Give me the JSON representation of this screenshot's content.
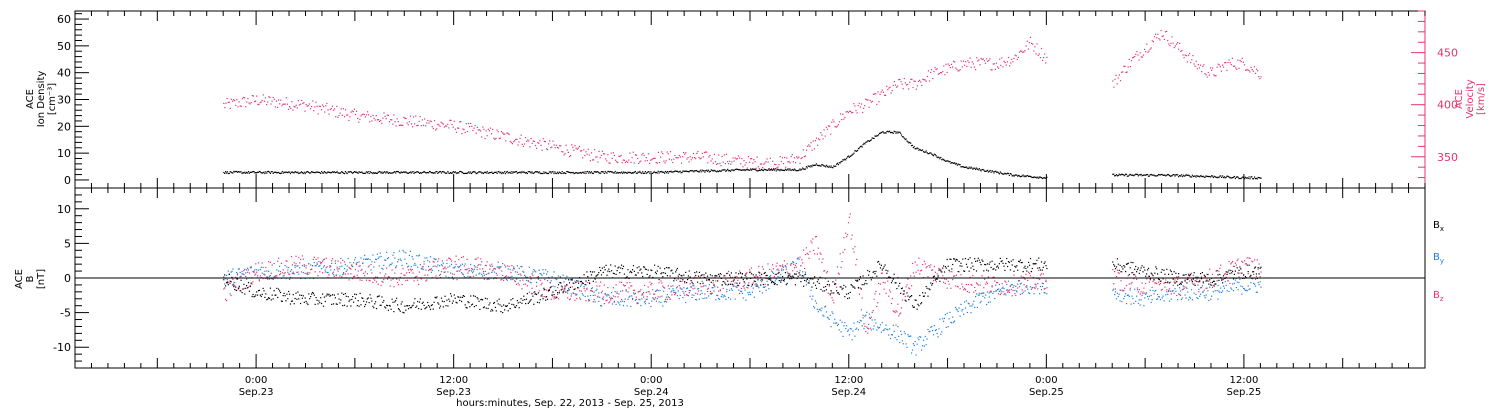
{
  "chart_data": [
    {
      "type": "scatter",
      "panel": "top",
      "title": "",
      "ylabel_left": [
        "ACE",
        "Ion Density",
        "[cm⁻³]"
      ],
      "ylabel_right": [
        "ACE",
        "Velocity",
        "[km/s]"
      ],
      "ylim_left": [
        -3,
        63
      ],
      "yticks_left": [
        0,
        10,
        20,
        30,
        40,
        50,
        60
      ],
      "ylim_right": [
        320,
        490
      ],
      "yticks_right": [
        350,
        400,
        450
      ],
      "grid": false,
      "colors": {
        "density": "#000000",
        "velocity": "#e8336a"
      },
      "series": [
        {
          "axis": "left",
          "color": "#000000",
          "noise": 0.4,
          "density": 6,
          "segments": [
            {
              "x": [
                -2.0,
                0,
                6,
                12,
                18,
                24,
                30,
                33,
                34,
                35,
                36,
                37,
                38,
                39,
                40,
                41,
                42,
                43,
                44,
                46,
                48
              ],
              "y": [
                3,
                3,
                3,
                3,
                3,
                3,
                4,
                4,
                6,
                5,
                9,
                14,
                18,
                18,
                12,
                10,
                7,
                5,
                4,
                2,
                1
              ]
            },
            {
              "x": [
                52,
                55,
                58,
                60,
                61
              ],
              "y": [
                2,
                2,
                1.5,
                1,
                1
              ]
            }
          ]
        },
        {
          "axis": "right",
          "color": "#e8336a",
          "noise": 6,
          "density": 5,
          "segments": [
            {
              "x": [
                -2.0,
                0,
                3,
                6,
                9,
                12,
                15,
                18,
                21,
                24,
                27,
                30,
                32,
                33,
                34,
                35,
                36,
                37,
                38,
                39,
                40,
                41,
                42,
                43,
                44,
                45,
                46,
                47,
                48
              ],
              "y": [
                400,
                405,
                400,
                390,
                385,
                380,
                370,
                360,
                350,
                350,
                350,
                345,
                345,
                350,
                365,
                380,
                395,
                400,
                410,
                420,
                420,
                430,
                435,
                440,
                440,
                440,
                445,
                460,
                445
              ]
            },
            {
              "x": [
                52,
                53,
                54,
                55,
                56,
                57,
                58,
                59,
                60,
                61
              ],
              "y": [
                420,
                440,
                455,
                470,
                455,
                440,
                430,
                440,
                440,
                430
              ]
            }
          ]
        }
      ]
    },
    {
      "type": "scatter",
      "panel": "bottom",
      "title": "",
      "ylabel_left": [
        "ACE",
        "B",
        "[nT]"
      ],
      "ylim": [
        -13,
        13
      ],
      "yticks": [
        -10,
        -5,
        0,
        5,
        10
      ],
      "zero_line": true,
      "legend_position": "right",
      "grid": false,
      "x_tick_labels": [
        {
          "x": 0,
          "line1": "0:00",
          "line2": "Sep.23"
        },
        {
          "x": 12,
          "line1": "12:00",
          "line2": "Sep.23"
        },
        {
          "x": 24,
          "line1": "0:00",
          "line2": "Sep.24"
        },
        {
          "x": 36,
          "line1": "12:00",
          "line2": "Sep.24"
        },
        {
          "x": 48,
          "line1": "0:00",
          "line2": "Sep.25"
        },
        {
          "x": 60,
          "line1": "12:00",
          "line2": "Sep.25"
        }
      ],
      "xlabel": "hours:minutes, Sep. 22, 2013 - Sep. 25, 2013",
      "xlim": [
        -11,
        71
      ],
      "series": [
        {
          "name_main": "B",
          "name_sub": "x",
          "color": "#000000",
          "noise": 1.0,
          "density": 6,
          "segments": [
            {
              "x": [
                -2.0,
                0,
                3,
                6,
                9,
                12,
                15,
                18,
                21,
                24,
                27,
                30,
                33,
                36,
                38,
                40,
                42,
                44,
                46,
                48
              ],
              "y": [
                0,
                -2,
                -3,
                -3,
                -4,
                -3,
                -4,
                -2,
                1,
                1,
                0,
                0,
                0,
                -2,
                2,
                -4,
                2,
                2,
                2,
                2
              ]
            },
            {
              "x": [
                52,
                54,
                56,
                58,
                60,
                61
              ],
              "y": [
                2,
                1,
                0,
                0,
                1,
                1
              ]
            }
          ]
        },
        {
          "name_main": "B",
          "name_sub": "y",
          "color": "#1f7fe0",
          "noise": 1.2,
          "density": 6,
          "segments": [
            {
              "x": [
                -2.0,
                0,
                3,
                6,
                9,
                12,
                15,
                18,
                21,
                24,
                27,
                30,
                33,
                34,
                35,
                36,
                37,
                38,
                39,
                40,
                42,
                44,
                46,
                48
              ],
              "y": [
                0,
                1,
                1,
                2,
                3,
                1,
                1,
                0,
                -3,
                -3,
                -2,
                -2,
                2,
                -4,
                -6,
                -8,
                -6,
                -7,
                -8,
                -10,
                -6,
                -3,
                -1,
                -1
              ]
            },
            {
              "x": [
                52,
                54,
                56,
                58,
                60,
                61
              ],
              "y": [
                -2,
                -3,
                -2,
                -2,
                -1,
                -1
              ]
            }
          ]
        },
        {
          "name_main": "B",
          "name_sub": "z",
          "color": "#e8336a",
          "noise": 1.5,
          "density": 6,
          "segments": [
            {
              "x": [
                -2.0,
                0,
                3,
                6,
                9,
                12,
                15,
                18,
                21,
                24,
                27,
                30,
                33,
                34,
                35,
                36,
                37,
                38,
                39,
                40,
                42,
                44,
                46,
                48
              ],
              "y": [
                -2,
                1,
                2,
                1,
                0,
                2,
                1,
                -2,
                -2,
                -2,
                -1,
                0,
                2,
                5,
                -3,
                9,
                -8,
                0,
                -5,
                2,
                0,
                -1,
                -1,
                0
              ]
            },
            {
              "x": [
                52,
                54,
                56,
                58,
                60,
                61
              ],
              "y": [
                0,
                -1,
                -1,
                0,
                2,
                1
              ]
            }
          ]
        }
      ]
    }
  ]
}
